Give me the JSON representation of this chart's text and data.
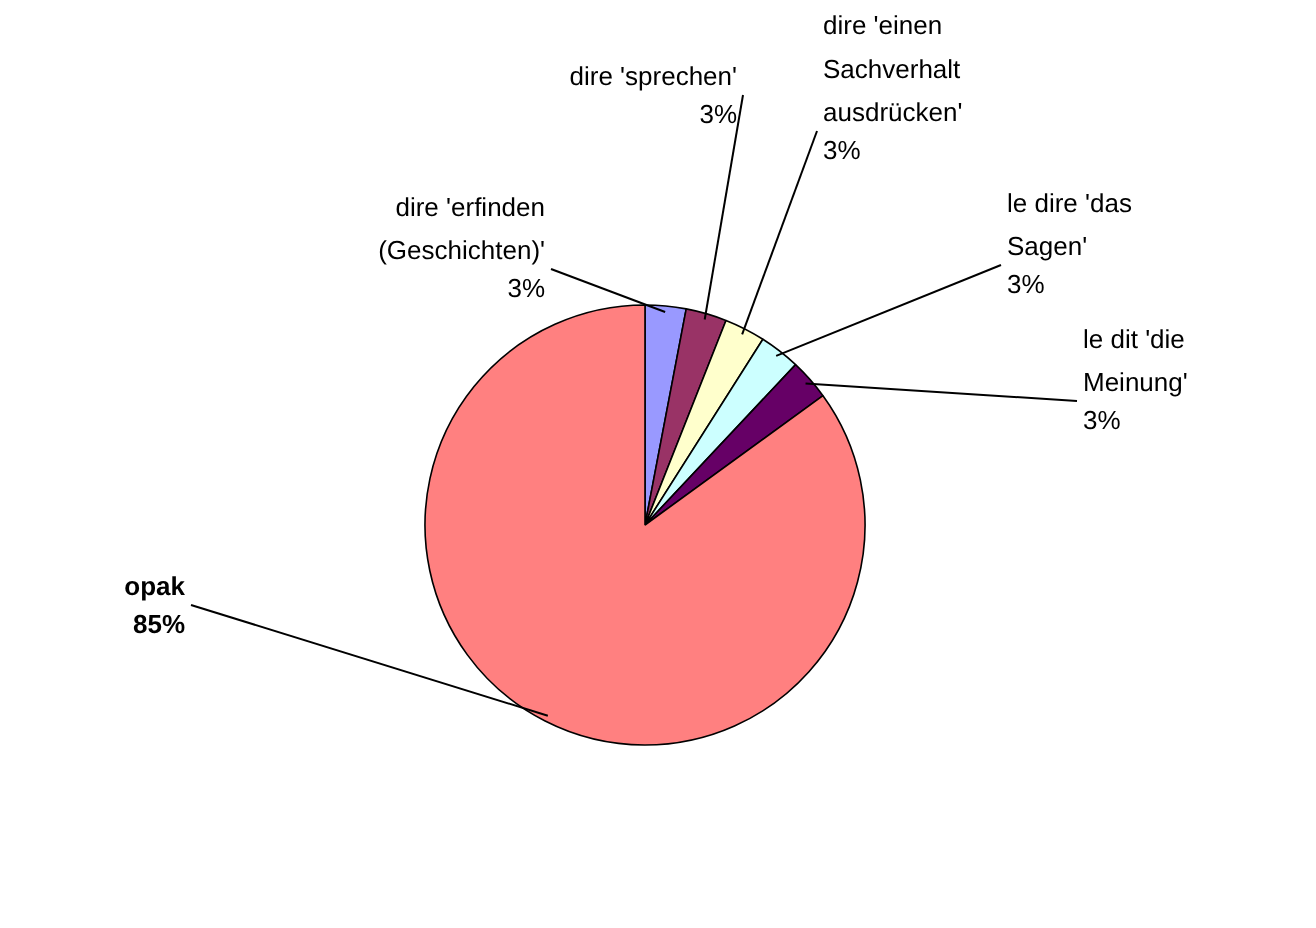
{
  "chart_data": {
    "type": "pie",
    "categories": [
      "dire 'erfinden (Geschichten)'",
      "dire 'sprechen'",
      "dire 'einen Sachverhalt ausdrücken'",
      "le dire 'das Sagen'",
      "le dit 'die Meinung'",
      "opak"
    ],
    "values": [
      3,
      3,
      3,
      3,
      3,
      85
    ],
    "colors": [
      "#9999ff",
      "#993366",
      "#ffffcc",
      "#ccffff",
      "#660066",
      "#ff8080"
    ],
    "value_labels": [
      "3%",
      "3%",
      "3%",
      "3%",
      "3%",
      "85%"
    ]
  }
}
